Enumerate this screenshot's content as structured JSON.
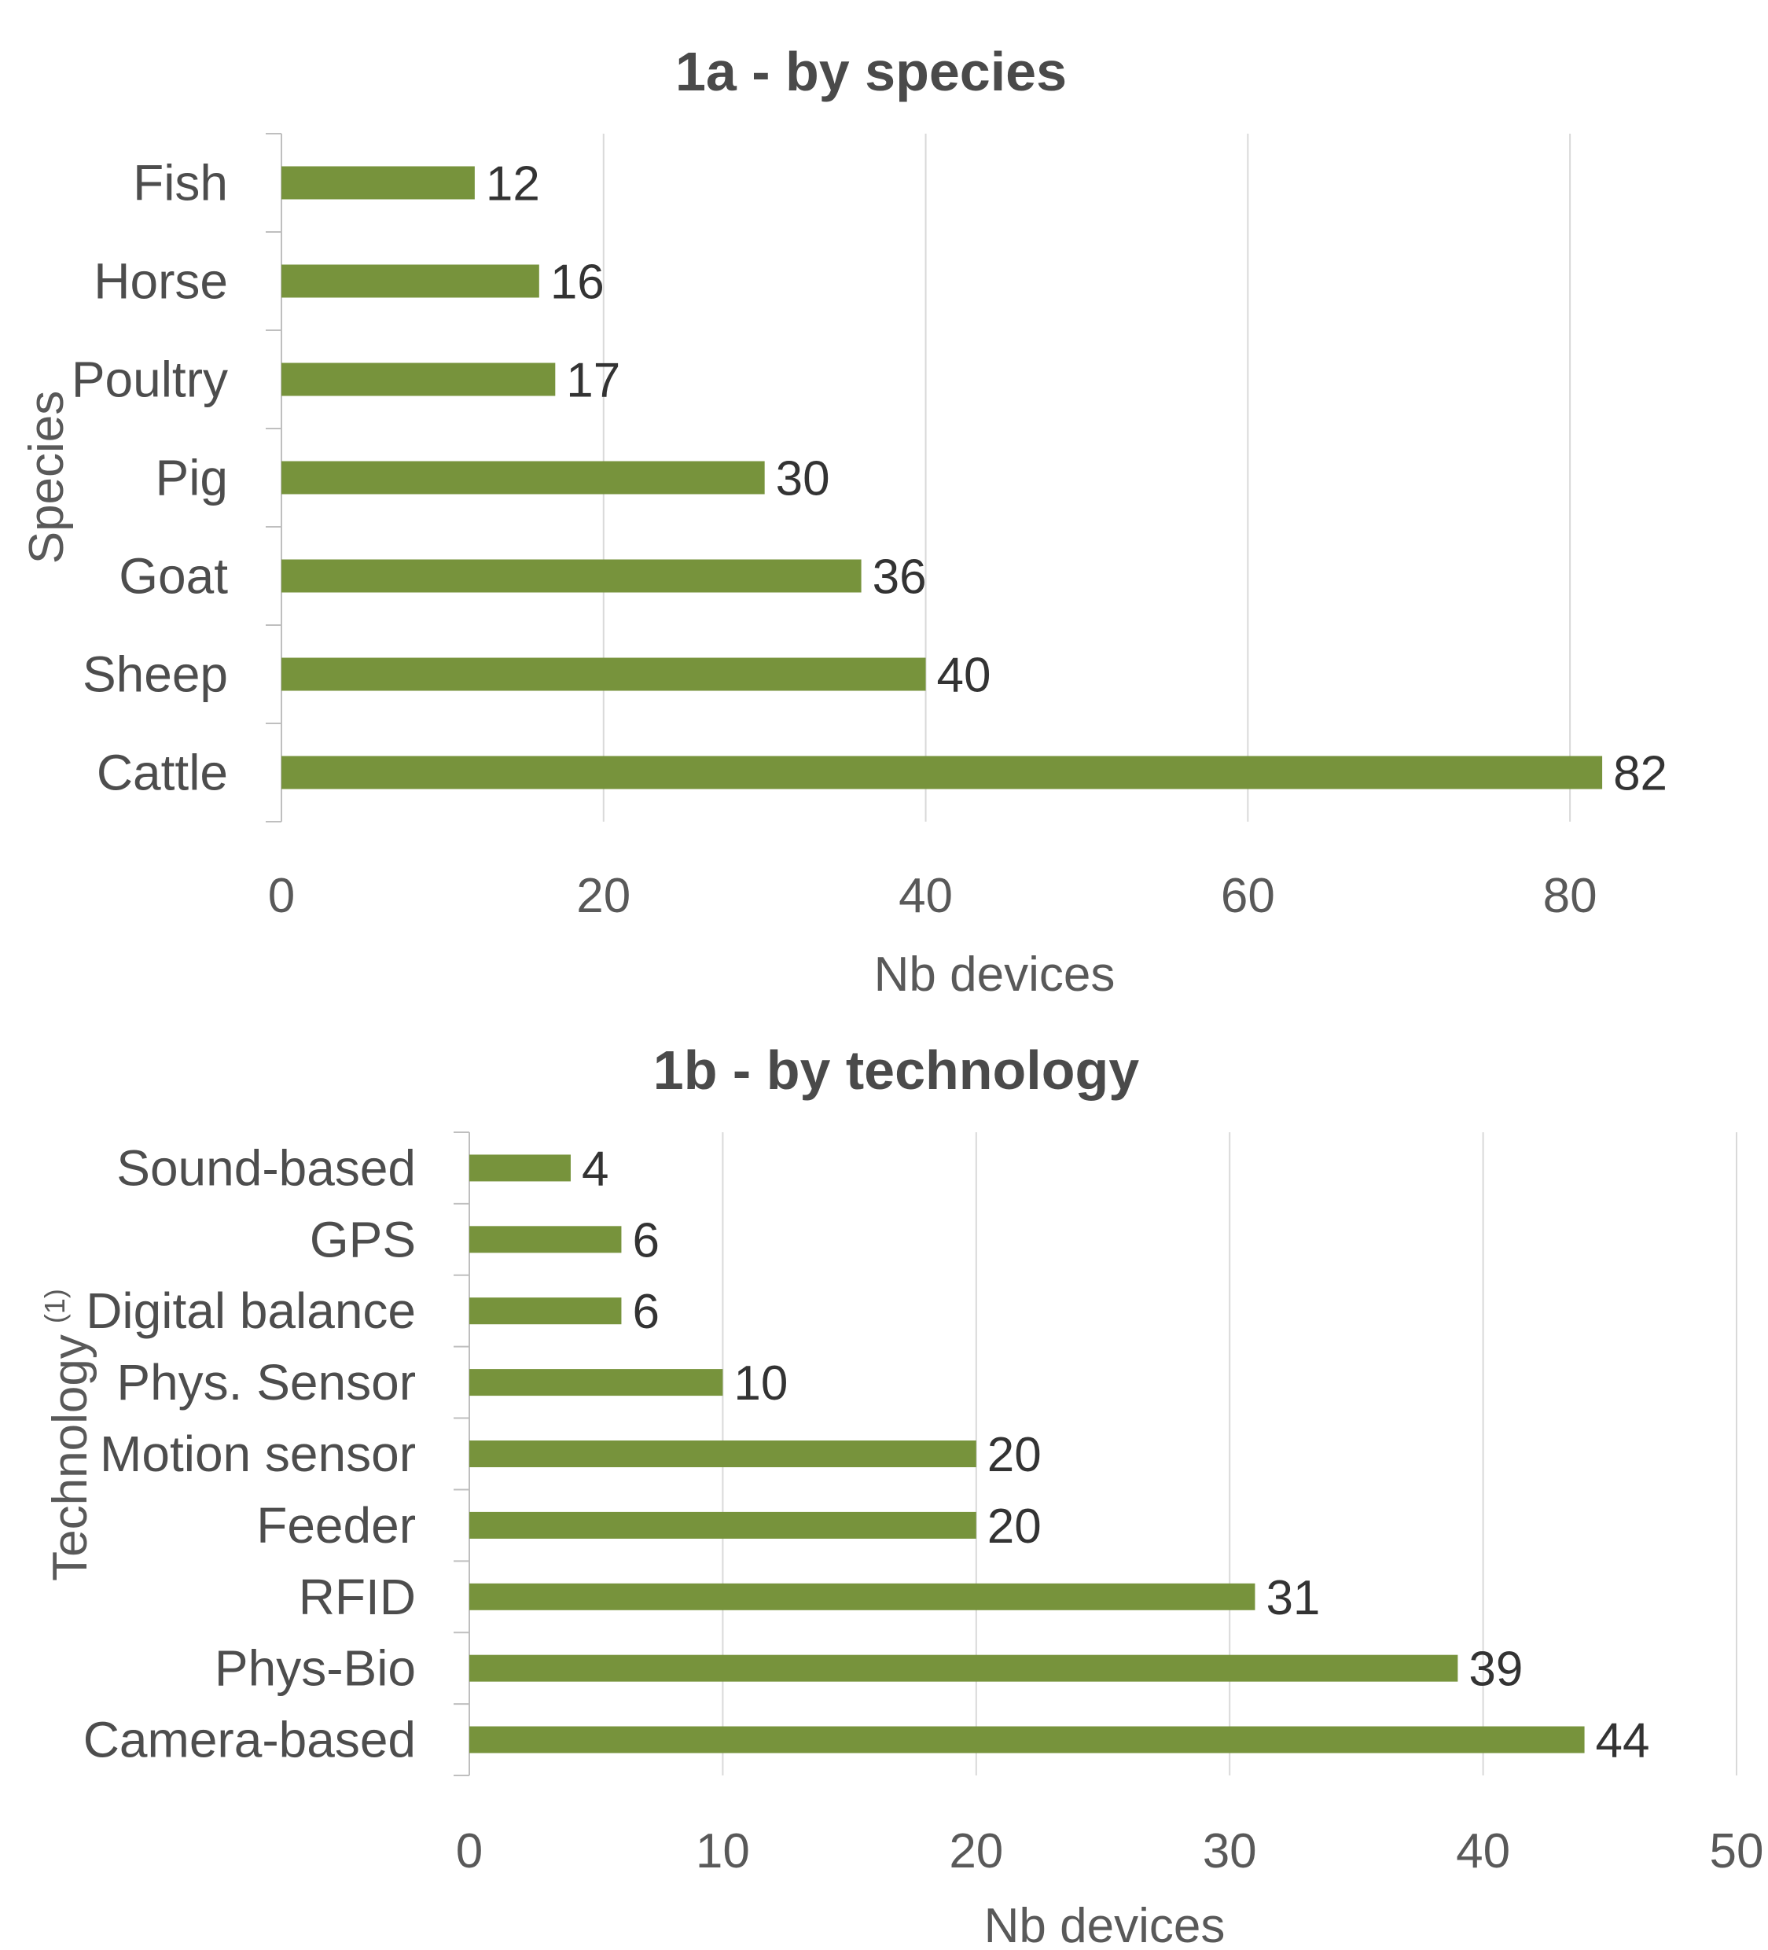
{
  "chart_data": [
    {
      "type": "bar",
      "orientation": "horizontal",
      "title": "1a - by species",
      "xlabel": "Nb devices",
      "ylabel": "Species",
      "ylabel_superscript": "",
      "categories": [
        "Fish",
        "Horse",
        "Poultry",
        "Pig",
        "Goat",
        "Sheep",
        "Cattle"
      ],
      "values": [
        12,
        16,
        17,
        30,
        36,
        40,
        82
      ],
      "xlim": [
        0,
        90
      ],
      "xticks": [
        0,
        20,
        40,
        60,
        80
      ],
      "grid": true,
      "bar_color": "#77933c"
    },
    {
      "type": "bar",
      "orientation": "horizontal",
      "title": "1b - by technology",
      "xlabel": "Nb devices",
      "ylabel": "Technology",
      "ylabel_superscript": "(1)",
      "categories": [
        "Sound-based",
        "GPS",
        "Digital balance",
        "Phys. Sensor",
        "Motion sensor",
        "Feeder",
        "RFID",
        "Phys-Bio",
        "Camera-based"
      ],
      "values": [
        4,
        6,
        6,
        10,
        20,
        20,
        31,
        39,
        44
      ],
      "xlim": [
        0,
        50
      ],
      "xticks": [
        0,
        10,
        20,
        30,
        40,
        50
      ],
      "grid": true,
      "bar_color": "#77933c"
    }
  ]
}
